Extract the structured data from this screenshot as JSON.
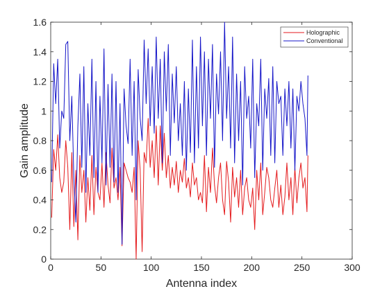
{
  "chart_data": {
    "type": "line",
    "title": "",
    "xlabel": "Antenna index",
    "ylabel": "Gain amplitude",
    "xlim": [
      0,
      300
    ],
    "ylim": [
      0,
      1.6
    ],
    "xticks": [
      0,
      50,
      100,
      150,
      200,
      250,
      300
    ],
    "yticks": [
      0,
      0.2,
      0.4,
      0.6,
      0.8,
      1,
      1.2,
      1.4,
      1.6
    ],
    "xtick_labels": [
      "0",
      "50",
      "100",
      "150",
      "200",
      "250",
      "300"
    ],
    "ytick_labels": [
      "0",
      "0.2",
      "0.4",
      "0.6",
      "0.8",
      "1",
      "1.2",
      "1.4",
      "1.6"
    ],
    "grid": false,
    "legend_position": "top-right",
    "series": [
      {
        "name": "Holographic",
        "color": "#e41a1c",
        "x": [
          1,
          3,
          5,
          7,
          9,
          11,
          13,
          15,
          17,
          19,
          21,
          23,
          25,
          27,
          29,
          31,
          33,
          35,
          37,
          39,
          41,
          43,
          45,
          47,
          49,
          51,
          53,
          55,
          57,
          59,
          61,
          63,
          65,
          67,
          69,
          71,
          73,
          75,
          77,
          79,
          81,
          83,
          85,
          87,
          89,
          91,
          93,
          95,
          97,
          99,
          101,
          103,
          105,
          107,
          109,
          111,
          113,
          115,
          117,
          119,
          121,
          123,
          125,
          127,
          129,
          131,
          133,
          135,
          137,
          139,
          141,
          143,
          145,
          147,
          149,
          151,
          153,
          155,
          157,
          159,
          161,
          163,
          165,
          167,
          169,
          171,
          173,
          175,
          177,
          179,
          181,
          183,
          185,
          187,
          189,
          191,
          193,
          195,
          197,
          199,
          201,
          203,
          205,
          207,
          209,
          211,
          213,
          215,
          217,
          219,
          221,
          223,
          225,
          227,
          229,
          231,
          233,
          235,
          237,
          239,
          241,
          243,
          245,
          247,
          249,
          251,
          253,
          255,
          256
        ],
        "values": [
          0.28,
          0.74,
          0.6,
          0.84,
          0.55,
          0.45,
          0.52,
          0.8,
          0.62,
          0.2,
          0.72,
          0.22,
          0.6,
          0.13,
          0.7,
          0.45,
          0.6,
          0.25,
          0.55,
          0.33,
          0.7,
          0.3,
          0.62,
          0.45,
          0.4,
          0.65,
          0.35,
          0.72,
          0.5,
          0.38,
          0.75,
          0.48,
          0.55,
          0.4,
          0.62,
          0.09,
          0.65,
          0.6,
          0.55,
          0.52,
          0.45,
          0.62,
          0.0,
          0.8,
          0.6,
          0.05,
          0.72,
          0.65,
          0.95,
          0.62,
          0.8,
          0.55,
          0.9,
          0.5,
          0.9,
          0.6,
          0.85,
          0.55,
          0.7,
          0.48,
          0.62,
          0.5,
          0.66,
          0.45,
          0.6,
          0.52,
          0.68,
          0.48,
          0.55,
          0.42,
          0.65,
          0.5,
          0.55,
          0.4,
          0.45,
          0.38,
          0.7,
          0.32,
          0.62,
          0.45,
          0.75,
          0.5,
          0.38,
          0.55,
          0.65,
          0.4,
          0.3,
          0.66,
          0.52,
          0.25,
          0.62,
          0.42,
          0.55,
          0.35,
          0.6,
          0.3,
          0.48,
          0.55,
          0.4,
          0.35,
          0.48,
          0.2,
          0.6,
          0.4,
          0.65,
          0.3,
          0.45,
          0.62,
          0.55,
          0.4,
          0.35,
          0.48,
          0.6,
          0.35,
          0.5,
          0.3,
          0.42,
          0.65,
          0.4,
          0.55,
          0.3,
          0.62,
          0.38,
          0.55,
          0.65,
          0.48,
          0.55,
          0.32,
          0.7
        ]
      },
      {
        "name": "Conventional",
        "color": "#1414c8",
        "x": [
          1,
          3,
          5,
          7,
          9,
          11,
          13,
          15,
          17,
          19,
          21,
          23,
          25,
          27,
          29,
          31,
          33,
          35,
          37,
          39,
          41,
          43,
          45,
          47,
          49,
          51,
          53,
          55,
          57,
          59,
          61,
          63,
          65,
          67,
          69,
          71,
          73,
          75,
          77,
          79,
          81,
          83,
          85,
          87,
          89,
          91,
          93,
          95,
          97,
          99,
          101,
          103,
          105,
          107,
          109,
          111,
          113,
          115,
          117,
          119,
          121,
          123,
          125,
          127,
          129,
          131,
          133,
          135,
          137,
          139,
          141,
          143,
          145,
          147,
          149,
          151,
          153,
          155,
          157,
          159,
          161,
          163,
          165,
          167,
          169,
          171,
          173,
          175,
          177,
          179,
          181,
          183,
          185,
          187,
          189,
          191,
          193,
          195,
          197,
          199,
          201,
          203,
          205,
          207,
          209,
          211,
          213,
          215,
          217,
          219,
          221,
          223,
          225,
          227,
          229,
          231,
          233,
          235,
          237,
          239,
          241,
          243,
          245,
          247,
          249,
          251,
          253,
          255,
          256
        ],
        "values": [
          0.52,
          1.32,
          1.05,
          1.35,
          0.75,
          1.0,
          0.95,
          1.45,
          1.47,
          0.8,
          1.1,
          0.55,
          0.25,
          0.9,
          1.25,
          0.62,
          1.3,
          0.45,
          1.05,
          0.7,
          1.35,
          0.55,
          1.2,
          0.45,
          1.1,
          0.65,
          1.42,
          0.5,
          1.18,
          0.62,
          1.25,
          0.52,
          1.2,
          0.45,
          1.05,
          0.1,
          1.15,
          0.9,
          0.78,
          1.35,
          0.7,
          1.2,
          0.4,
          1.28,
          0.95,
          0.8,
          1.48,
          1.05,
          1.42,
          0.9,
          1.3,
          0.85,
          1.5,
          0.95,
          1.35,
          0.65,
          1.4,
          1.0,
          1.45,
          0.7,
          1.25,
          0.92,
          1.3,
          0.8,
          1.05,
          0.7,
          1.2,
          0.6,
          1.15,
          0.72,
          1.48,
          0.65,
          1.3,
          0.75,
          1.5,
          0.9,
          1.4,
          0.7,
          1.35,
          0.95,
          1.45,
          0.62,
          1.25,
          0.98,
          1.4,
          0.8,
          1.6,
          0.95,
          1.3,
          0.75,
          1.5,
          0.65,
          1.25,
          0.8,
          1.2,
          0.5,
          1.3,
          0.95,
          1.1,
          0.75,
          1.35,
          0.55,
          1.05,
          0.9,
          1.35,
          0.6,
          1.15,
          0.95,
          1.22,
          0.7,
          1.3,
          0.65,
          1.2,
          1.05,
          1.1,
          0.7,
          1.15,
          0.9,
          1.2,
          0.75,
          1.15,
          0.6,
          1.1,
          1.0,
          1.2,
          1.05,
          0.95,
          0.7,
          1.24
        ]
      }
    ]
  }
}
